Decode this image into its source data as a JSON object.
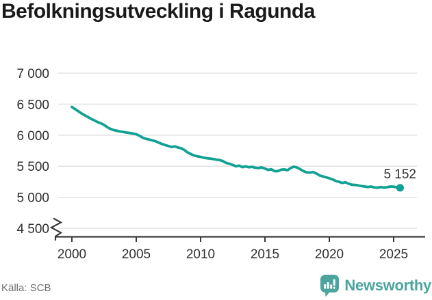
{
  "title": "Befolkningsutveckling i Ragunda",
  "source": "Källa: SCB",
  "logo": {
    "text": "Newsworthy"
  },
  "colors": {
    "line": "#12a195",
    "logo": "#4ba49d",
    "grid": "#dedede",
    "axis": "#3a3a3a",
    "tick_text": "#2e2e2e",
    "title_text": "#191919",
    "source_text": "#6e6e6e"
  },
  "annotation": {
    "latest_value_label": "5 152"
  },
  "chart_data": {
    "type": "line",
    "title": "Befolkningsutveckling i Ragunda",
    "xlabel": "",
    "ylabel": "",
    "ylim": [
      4500,
      7000
    ],
    "xlim": [
      1998.8,
      2027.4
    ],
    "grid": "horizontal",
    "legend": "none",
    "axis_break_at_y": 4500,
    "y_ticks": [
      4500,
      5000,
      5500,
      6000,
      6500,
      7000
    ],
    "y_tick_labels": [
      "4 500",
      "5 000",
      "5 500",
      "6 000",
      "6 500",
      "7 000"
    ],
    "x_ticks": [
      2000,
      2005,
      2010,
      2015,
      2020,
      2025
    ],
    "x_tick_labels": [
      "2000",
      "2005",
      "2010",
      "2015",
      "2020",
      "2025"
    ],
    "series_name": "Befolkning",
    "last_point_label": "5 152",
    "last_value": 5152,
    "x": [
      2000,
      2000.25,
      2000.5,
      2000.75,
      2001,
      2001.25,
      2001.5,
      2001.75,
      2002,
      2002.25,
      2002.5,
      2002.75,
      2003,
      2003.25,
      2003.5,
      2003.75,
      2004,
      2004.25,
      2004.5,
      2004.75,
      2005,
      2005.25,
      2005.5,
      2005.75,
      2006,
      2006.25,
      2006.5,
      2006.75,
      2007,
      2007.25,
      2007.5,
      2007.75,
      2008,
      2008.25,
      2008.5,
      2008.75,
      2009,
      2009.25,
      2009.5,
      2009.75,
      2010,
      2010.25,
      2010.5,
      2010.75,
      2011,
      2011.25,
      2011.5,
      2011.75,
      2012,
      2012.25,
      2012.5,
      2012.75,
      2013,
      2013.25,
      2013.5,
      2013.75,
      2014,
      2014.25,
      2014.5,
      2014.75,
      2015,
      2015.25,
      2015.5,
      2015.75,
      2016,
      2016.25,
      2016.5,
      2016.75,
      2017,
      2017.25,
      2017.5,
      2017.75,
      2018,
      2018.25,
      2018.5,
      2018.75,
      2019,
      2019.25,
      2019.5,
      2019.75,
      2020,
      2020.25,
      2020.5,
      2020.75,
      2021,
      2021.25,
      2021.5,
      2021.75,
      2022,
      2022.25,
      2022.5,
      2022.75,
      2023,
      2023.25,
      2023.5,
      2023.75,
      2024,
      2024.25,
      2024.5,
      2024.75,
      2025,
      2025.25,
      2025.5
    ],
    "values": [
      6455,
      6420,
      6385,
      6350,
      6320,
      6292,
      6262,
      6238,
      6210,
      6192,
      6165,
      6128,
      6100,
      6082,
      6070,
      6060,
      6052,
      6042,
      6035,
      6025,
      6015,
      5990,
      5960,
      5942,
      5930,
      5916,
      5902,
      5880,
      5858,
      5840,
      5825,
      5810,
      5820,
      5800,
      5788,
      5760,
      5720,
      5695,
      5672,
      5660,
      5650,
      5638,
      5628,
      5622,
      5615,
      5605,
      5598,
      5580,
      5552,
      5540,
      5520,
      5498,
      5510,
      5485,
      5498,
      5482,
      5490,
      5475,
      5470,
      5480,
      5462,
      5440,
      5450,
      5420,
      5420,
      5443,
      5448,
      5435,
      5470,
      5492,
      5478,
      5450,
      5420,
      5400,
      5398,
      5405,
      5382,
      5350,
      5335,
      5322,
      5305,
      5288,
      5262,
      5248,
      5230,
      5240,
      5218,
      5202,
      5198,
      5190,
      5180,
      5172,
      5165,
      5172,
      5158,
      5154,
      5164,
      5155,
      5162,
      5172,
      5170,
      5160,
      5152
    ]
  }
}
